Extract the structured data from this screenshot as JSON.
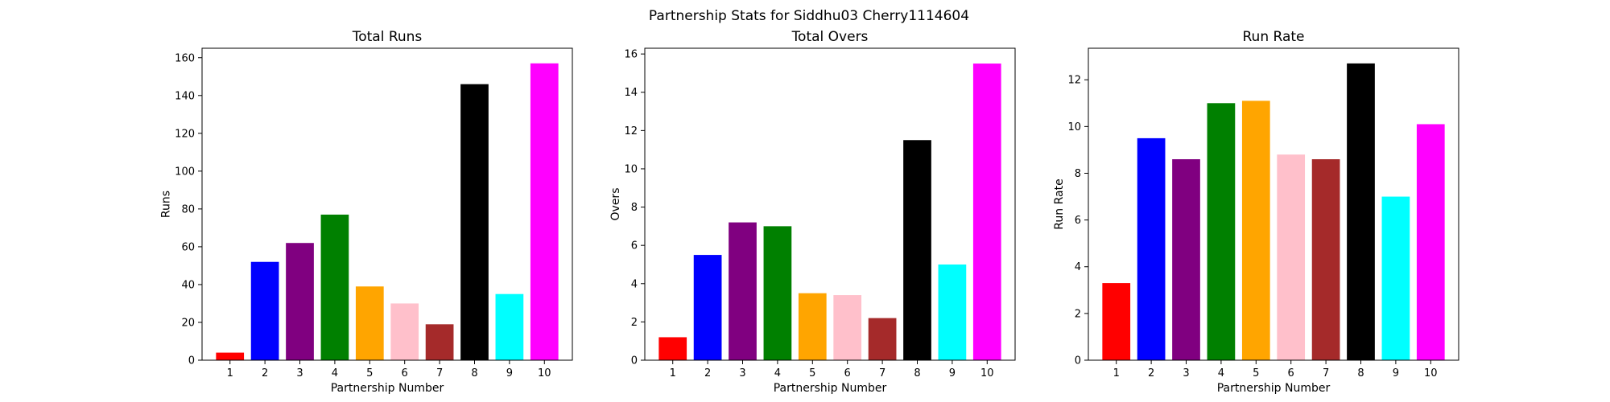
{
  "figure_title": "Partnership Stats for Siddhu03 Cherry1114604",
  "chart_data": [
    {
      "type": "bar",
      "title": "Total Runs",
      "xlabel": "Partnership Number",
      "ylabel": "Runs",
      "categories": [
        "1",
        "2",
        "3",
        "4",
        "5",
        "6",
        "7",
        "8",
        "9",
        "10"
      ],
      "values": [
        4,
        52,
        62,
        77,
        39,
        30,
        19,
        146,
        35,
        157
      ],
      "colors": [
        "#ff0000",
        "#0000ff",
        "#800080",
        "#008000",
        "#ffa500",
        "#ffc0cb",
        "#a52a2a",
        "#000000",
        "#00ffff",
        "#ff00ff"
      ],
      "ylim": [
        0,
        165
      ],
      "yticks": [
        0,
        20,
        40,
        60,
        80,
        100,
        120,
        140,
        160
      ],
      "grid": false,
      "legend": "none"
    },
    {
      "type": "bar",
      "title": "Total Overs",
      "xlabel": "Partnership Number",
      "ylabel": "Overs",
      "categories": [
        "1",
        "2",
        "3",
        "4",
        "5",
        "6",
        "7",
        "8",
        "9",
        "10"
      ],
      "values": [
        1.2,
        5.5,
        7.2,
        7.0,
        3.5,
        3.4,
        2.2,
        11.5,
        5.0,
        15.5
      ],
      "colors": [
        "#ff0000",
        "#0000ff",
        "#800080",
        "#008000",
        "#ffa500",
        "#ffc0cb",
        "#a52a2a",
        "#000000",
        "#00ffff",
        "#ff00ff"
      ],
      "ylim": [
        0,
        16.3
      ],
      "yticks": [
        0,
        2,
        4,
        6,
        8,
        10,
        12,
        14,
        16
      ],
      "grid": false,
      "legend": "none"
    },
    {
      "type": "bar",
      "title": "Run Rate",
      "xlabel": "Partnership Number",
      "ylabel": "Run Rate",
      "categories": [
        "1",
        "2",
        "3",
        "4",
        "5",
        "6",
        "7",
        "8",
        "9",
        "10"
      ],
      "values": [
        3.3,
        9.5,
        8.6,
        11.0,
        11.1,
        8.8,
        8.6,
        12.7,
        7.0,
        10.1
      ],
      "colors": [
        "#ff0000",
        "#0000ff",
        "#800080",
        "#008000",
        "#ffa500",
        "#ffc0cb",
        "#a52a2a",
        "#000000",
        "#00ffff",
        "#ff00ff"
      ],
      "ylim": [
        0,
        13.35
      ],
      "yticks": [
        0,
        2,
        4,
        6,
        8,
        10,
        12
      ],
      "grid": false,
      "legend": "none"
    }
  ]
}
